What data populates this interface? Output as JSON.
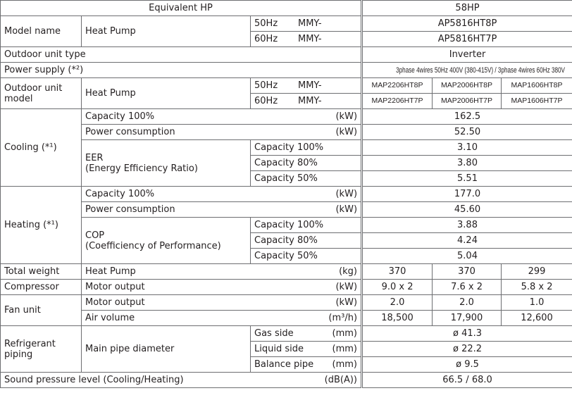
{
  "header": {
    "left": "Equivalent HP",
    "right": "58HP"
  },
  "model_name": {
    "label": "Model name",
    "unit": "Heat Pump",
    "rows": [
      {
        "freq": "50Hz",
        "prefix": "MMY-",
        "model": "AP5816HT8P"
      },
      {
        "freq": "60Hz",
        "prefix": "MMY-",
        "model": "AP5816HT7P"
      }
    ]
  },
  "outdoor_unit_type": {
    "label": "Outdoor unit type",
    "value": "Inverter"
  },
  "power_supply": {
    "label": "Power supply (*²)",
    "value": "3phase 4wires 50Hz 400V (380-415V) / 3phase 4wires 60Hz 380V"
  },
  "outdoor_unit_model": {
    "label": "Outdoor unit model",
    "unit": "Heat Pump",
    "rows": [
      {
        "freq": "50Hz",
        "prefix": "MMY-",
        "models": [
          "MAP2206HT8P",
          "MAP2006HT8P",
          "MAP1606HT8P"
        ]
      },
      {
        "freq": "60Hz",
        "prefix": "MMY-",
        "models": [
          "MAP2206HT7P",
          "MAP2006HT7P",
          "MAP1606HT7P"
        ]
      }
    ]
  },
  "cooling": {
    "label": "Cooling (*¹)",
    "capacity": {
      "label": "Capacity 100%",
      "unit": "(kW)",
      "value": "162.5"
    },
    "power": {
      "label": "Power consumption",
      "unit": "(kW)",
      "value": "52.50"
    },
    "ratio": {
      "label": "EER",
      "sub": "(Energy Efficiency Ratio)",
      "rows": [
        {
          "label": "Capacity 100%",
          "value": "3.10"
        },
        {
          "label": "Capacity 80%",
          "value": "3.80"
        },
        {
          "label": "Capacity 50%",
          "value": "5.51"
        }
      ]
    }
  },
  "heating": {
    "label": "Heating (*¹)",
    "capacity": {
      "label": "Capacity 100%",
      "unit": "(kW)",
      "value": "177.0"
    },
    "power": {
      "label": "Power consumption",
      "unit": "(kW)",
      "value": "45.60"
    },
    "ratio": {
      "label": "COP",
      "sub": "(Coefficiency of Performance)",
      "rows": [
        {
          "label": "Capacity 100%",
          "value": "3.88"
        },
        {
          "label": "Capacity 80%",
          "value": "4.24"
        },
        {
          "label": "Capacity 50%",
          "value": "5.04"
        }
      ]
    }
  },
  "total_weight": {
    "label": "Total weight",
    "item": "Heat Pump",
    "unit": "(kg)",
    "values": [
      "370",
      "370",
      "299"
    ]
  },
  "compressor": {
    "label": "Compressor",
    "item": "Motor output",
    "unit": "(kW)",
    "values": [
      "9.0 x 2",
      "7.6 x 2",
      "5.8 x 2"
    ]
  },
  "fan_unit": {
    "label": "Fan unit",
    "rows": [
      {
        "item": "Motor output",
        "unit": "(kW)",
        "values": [
          "2.0",
          "2.0",
          "1.0"
        ]
      },
      {
        "item": "Air volume",
        "unit": "(m³/h)",
        "values": [
          "18,500",
          "17,900",
          "12,600"
        ]
      }
    ]
  },
  "refrigerant_piping": {
    "label": "Refrigerant piping",
    "item": "Main pipe diameter",
    "rows": [
      {
        "side": "Gas side",
        "unit": "(mm)",
        "value": "ø 41.3"
      },
      {
        "side": "Liquid side",
        "unit": "(mm)",
        "value": "ø 22.2"
      },
      {
        "side": "Balance pipe",
        "unit": "(mm)",
        "value": "ø 9.5"
      }
    ]
  },
  "sound_pressure": {
    "label": "Sound pressure level (Cooling/Heating)",
    "unit": "(dB(A))",
    "value": "66.5 / 68.0"
  }
}
